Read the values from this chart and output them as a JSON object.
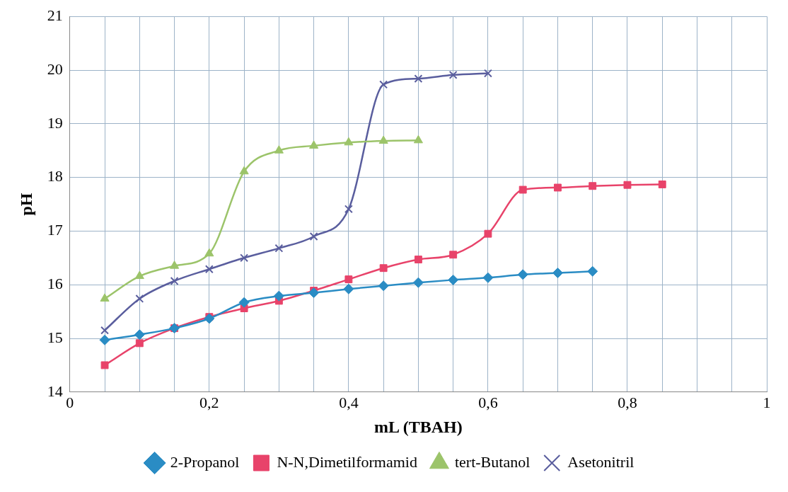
{
  "chart_data": {
    "type": "line",
    "xlabel": "mL (TBAH)",
    "ylabel": "pH",
    "xlim": [
      0,
      1
    ],
    "xticks": [
      0,
      {
        "value": 0.05,
        "label": null
      },
      {
        "value": 0.1,
        "label": null
      },
      {
        "value": 0.15,
        "label": null
      },
      {
        "value": 0.2,
        "label": "0,2"
      },
      {
        "value": 0.25,
        "label": null
      },
      {
        "value": 0.3,
        "label": null
      },
      {
        "value": 0.35,
        "label": null
      },
      {
        "value": 0.4,
        "label": "0,4"
      },
      {
        "value": 0.45,
        "label": null
      },
      {
        "value": 0.5,
        "label": null
      },
      {
        "value": 0.55,
        "label": null
      },
      {
        "value": 0.6,
        "label": "0,6"
      },
      {
        "value": 0.65,
        "label": null
      },
      {
        "value": 0.7,
        "label": null
      },
      {
        "value": 0.75,
        "label": null
      },
      {
        "value": 0.8,
        "label": "0,8"
      },
      {
        "value": 0.85,
        "label": null
      },
      {
        "value": 0.9,
        "label": null
      },
      {
        "value": 0.95,
        "label": null
      },
      1
    ],
    "ylim": [
      14,
      21
    ],
    "yticks": [
      14,
      15,
      16,
      17,
      18,
      19,
      20,
      21
    ],
    "grid": true,
    "legend": "bottom",
    "line_style": "solid",
    "series": [
      {
        "name": "2-Propanol",
        "color": "#2a8cc4",
        "marker": "diamond",
        "x": [
          0.05,
          0.1,
          0.15,
          0.2,
          0.25,
          0.3,
          0.35,
          0.4,
          0.45,
          0.5,
          0.55,
          0.6,
          0.65,
          0.7,
          0.75
        ],
        "values": [
          14.97,
          15.07,
          15.19,
          15.37,
          15.67,
          15.79,
          15.85,
          15.92,
          15.98,
          16.04,
          16.09,
          16.13,
          16.19,
          16.22,
          16.25
        ]
      },
      {
        "name": "N-N,Dimetilformamid",
        "color": "#e8436a",
        "marker": "square",
        "x": [
          0.05,
          0.1,
          0.15,
          0.2,
          0.25,
          0.3,
          0.35,
          0.4,
          0.45,
          0.5,
          0.55,
          0.6,
          0.65,
          0.7,
          0.75,
          0.8,
          0.85
        ],
        "values": [
          14.5,
          14.91,
          15.19,
          15.4,
          15.56,
          15.7,
          15.89,
          16.1,
          16.31,
          16.47,
          16.56,
          16.95,
          17.77,
          17.81,
          17.84,
          17.86,
          17.87
        ]
      },
      {
        "name": "tert-Butanol",
        "color": "#9cc46a",
        "marker": "triangle",
        "x": [
          0.05,
          0.1,
          0.15,
          0.2,
          0.25,
          0.3,
          0.35,
          0.4,
          0.45,
          0.5
        ],
        "values": [
          15.74,
          16.16,
          16.35,
          16.58,
          18.11,
          18.5,
          18.59,
          18.65,
          18.68,
          18.69
        ]
      },
      {
        "name": "Asetonitril",
        "color": "#5a5e9e",
        "marker": "cross",
        "x": [
          0.05,
          0.1,
          0.15,
          0.2,
          0.25,
          0.3,
          0.35,
          0.4,
          0.45,
          0.5,
          0.55,
          0.6
        ],
        "values": [
          15.15,
          15.74,
          16.07,
          16.29,
          16.5,
          16.68,
          16.9,
          17.41,
          19.73,
          19.84,
          19.91,
          19.94
        ]
      }
    ]
  }
}
